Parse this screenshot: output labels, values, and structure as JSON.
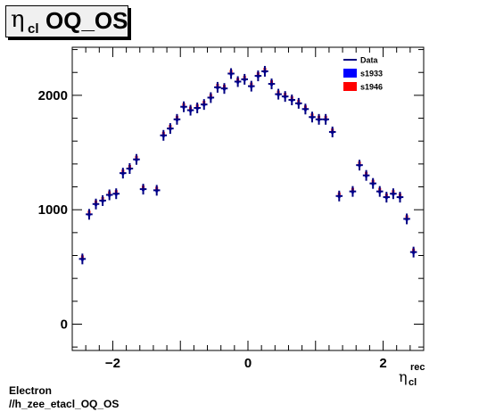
{
  "title": {
    "greek": "η",
    "subscript": "cl",
    "rest": "OQ_OS"
  },
  "footer": {
    "line1": "Electron",
    "line2": "//h_zee_etacl_OQ_OS"
  },
  "chart_data": {
    "type": "scatter",
    "xlabel": {
      "greek": "η",
      "sub": "cl",
      "sup": "rec"
    },
    "xlim": [
      -2.6,
      2.6
    ],
    "ylim": [
      -230,
      2420
    ],
    "xticks": [
      -2,
      0,
      2
    ],
    "yticks": [
      0,
      1000,
      2000
    ],
    "grid": false,
    "legend_position": "top-right",
    "legend": [
      {
        "name": "Data",
        "style": "line",
        "color": "#000080"
      },
      {
        "name": "s1933",
        "style": "box",
        "color": "#0000ff"
      },
      {
        "name": "s1946",
        "style": "box",
        "color": "#ff0000"
      }
    ],
    "bin_half_width": 0.05,
    "series": [
      {
        "name": "Data",
        "color": "#000080",
        "x": [
          -2.45,
          -2.35,
          -2.25,
          -2.15,
          -2.05,
          -1.95,
          -1.85,
          -1.75,
          -1.65,
          -1.55,
          -1.35,
          -1.25,
          -1.15,
          -1.05,
          -0.95,
          -0.85,
          -0.75,
          -0.65,
          -0.55,
          -0.45,
          -0.35,
          -0.25,
          -0.15,
          -0.05,
          0.05,
          0.15,
          0.25,
          0.35,
          0.45,
          0.55,
          0.65,
          0.75,
          0.85,
          0.95,
          1.05,
          1.15,
          1.25,
          1.35,
          1.55,
          1.65,
          1.75,
          1.85,
          1.95,
          2.05,
          2.15,
          2.25,
          2.35,
          2.45
        ],
        "y": [
          570,
          960,
          1050,
          1080,
          1130,
          1140,
          1320,
          1360,
          1440,
          1180,
          1170,
          1650,
          1710,
          1790,
          1900,
          1870,
          1890,
          1920,
          1980,
          2070,
          2060,
          2190,
          2120,
          2140,
          2080,
          2170,
          2210,
          2100,
          2010,
          1990,
          1960,
          1930,
          1880,
          1810,
          1790,
          1790,
          1680,
          1120,
          1160,
          1390,
          1300,
          1230,
          1160,
          1110,
          1140,
          1110,
          920,
          630
        ]
      }
    ]
  }
}
